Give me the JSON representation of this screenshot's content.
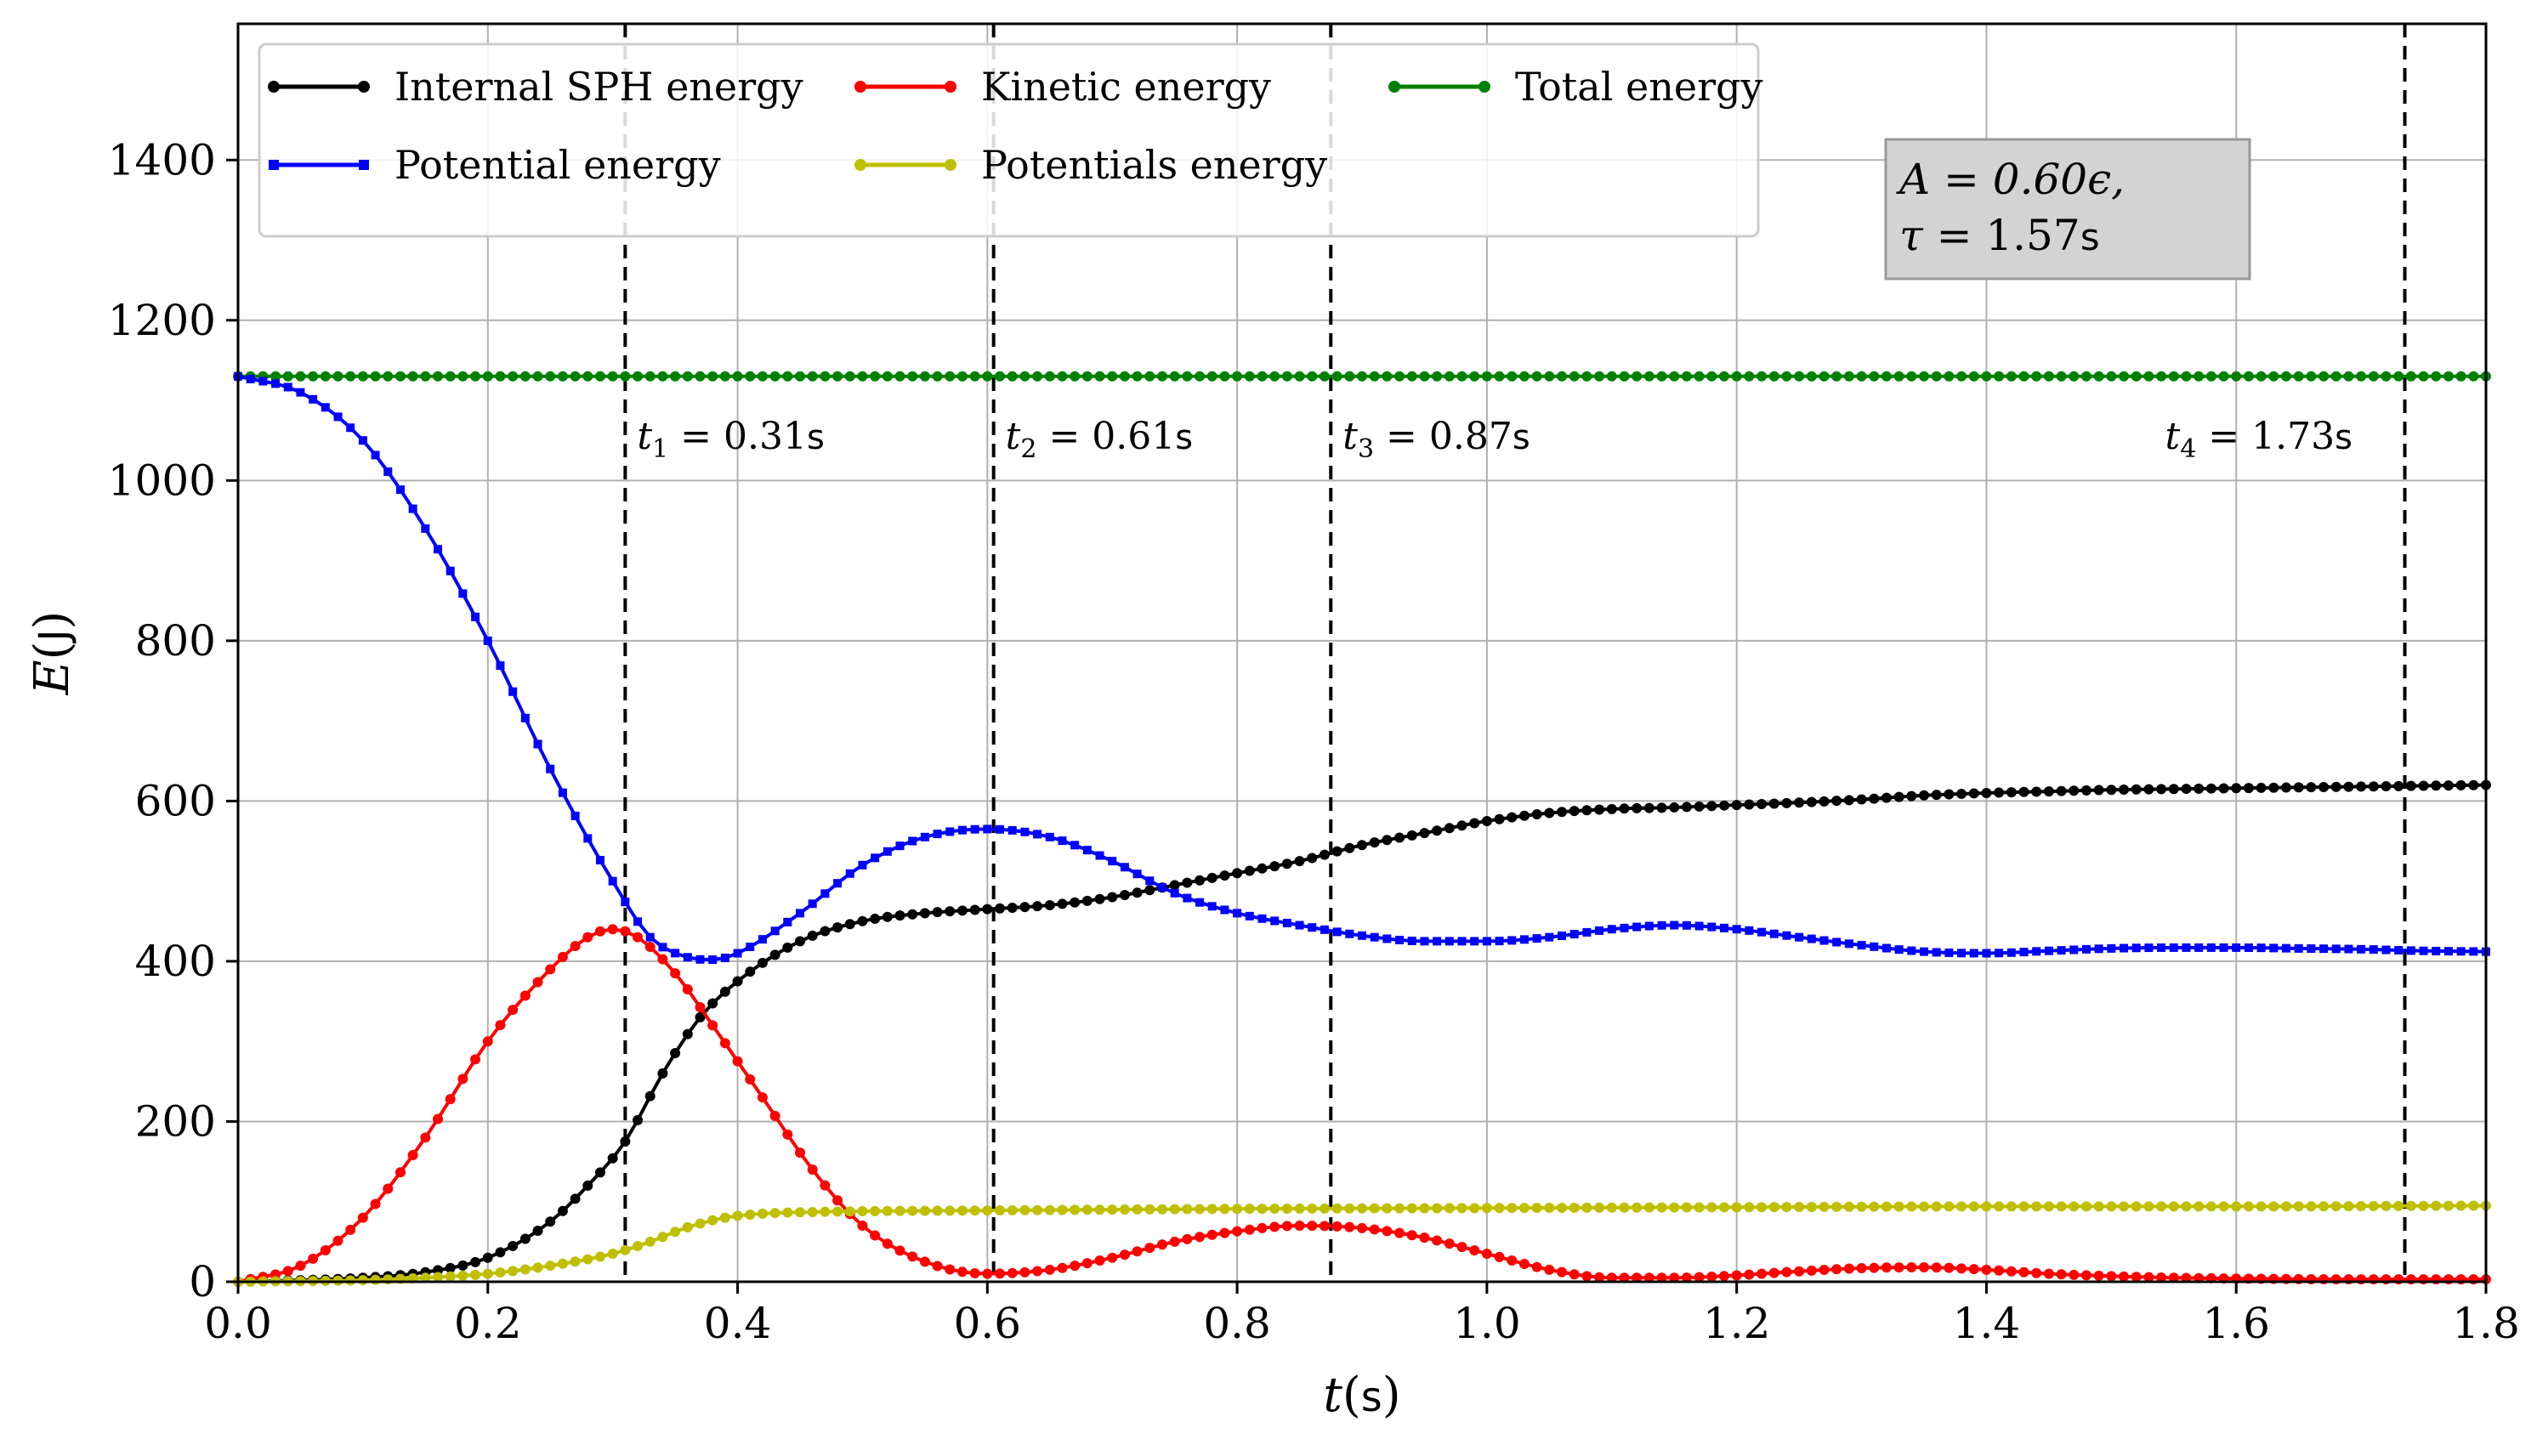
{
  "chart_data": {
    "type": "line",
    "xlabel_main": "t",
    "xlabel_unit": "s",
    "ylabel_main": "E",
    "ylabel_unit": "J",
    "xlim": [
      0.0,
      1.8
    ],
    "ylim": [
      0,
      1570
    ],
    "xticks": [
      0.0,
      0.2,
      0.4,
      0.6,
      0.8,
      1.0,
      1.2,
      1.4,
      1.6,
      1.8
    ],
    "xtick_labels": [
      "0.0",
      "0.2",
      "0.4",
      "0.6",
      "0.8",
      "1.0",
      "1.2",
      "1.4",
      "1.6",
      "1.8"
    ],
    "yticks": [
      0,
      200,
      400,
      600,
      800,
      1000,
      1200,
      1400
    ],
    "ytick_labels": [
      "0",
      "200",
      "400",
      "600",
      "800",
      "1000",
      "1200",
      "1400"
    ],
    "grid": true,
    "legend_position": "top-left",
    "series": [
      {
        "name": "Internal SPH energy",
        "color": "#000000",
        "marker": "circle",
        "x": [
          0.0,
          0.1,
          0.15,
          0.2,
          0.25,
          0.28,
          0.31,
          0.34,
          0.37,
          0.4,
          0.45,
          0.5,
          0.55,
          0.6,
          0.65,
          0.7,
          0.75,
          0.8,
          0.85,
          0.9,
          0.95,
          1.0,
          1.05,
          1.1,
          1.15,
          1.2,
          1.25,
          1.3,
          1.35,
          1.4,
          1.45,
          1.5,
          1.55,
          1.6,
          1.65,
          1.7,
          1.75,
          1.8
        ],
        "y": [
          0,
          5,
          12,
          30,
          75,
          120,
          175,
          260,
          330,
          375,
          425,
          450,
          460,
          465,
          470,
          480,
          495,
          510,
          525,
          545,
          560,
          575,
          585,
          590,
          592,
          595,
          598,
          602,
          607,
          610,
          612,
          614,
          615,
          616,
          617,
          618,
          619,
          620
        ]
      },
      {
        "name": "Kinetic energy",
        "color": "#ff0000",
        "marker": "circle",
        "x": [
          0.0,
          0.05,
          0.1,
          0.15,
          0.2,
          0.25,
          0.28,
          0.3,
          0.32,
          0.35,
          0.38,
          0.42,
          0.46,
          0.5,
          0.55,
          0.6,
          0.65,
          0.7,
          0.75,
          0.8,
          0.85,
          0.9,
          0.95,
          1.0,
          1.05,
          1.1,
          1.15,
          1.2,
          1.25,
          1.3,
          1.35,
          1.4,
          1.45,
          1.5,
          1.55,
          1.6,
          1.7,
          1.8
        ],
        "y": [
          0,
          20,
          80,
          180,
          300,
          390,
          430,
          440,
          430,
          385,
          320,
          230,
          140,
          70,
          25,
          10,
          15,
          30,
          50,
          63,
          70,
          67,
          55,
          35,
          15,
          5,
          5,
          8,
          13,
          17,
          18,
          15,
          10,
          7,
          5,
          4,
          3,
          3
        ]
      },
      {
        "name": "Total energy",
        "color": "#008000",
        "marker": "circle",
        "x": [
          0.0,
          1.8
        ],
        "y": [
          1130,
          1130
        ]
      },
      {
        "name": "Potential energy",
        "color": "#0000ff",
        "marker": "square",
        "x": [
          0.0,
          0.05,
          0.1,
          0.15,
          0.2,
          0.25,
          0.3,
          0.33,
          0.36,
          0.38,
          0.4,
          0.45,
          0.5,
          0.55,
          0.6,
          0.65,
          0.7,
          0.75,
          0.8,
          0.85,
          0.9,
          0.95,
          1.0,
          1.05,
          1.1,
          1.15,
          1.2,
          1.25,
          1.3,
          1.35,
          1.4,
          1.45,
          1.5,
          1.55,
          1.6,
          1.65,
          1.7,
          1.75,
          1.8
        ],
        "y": [
          1130,
          1110,
          1050,
          940,
          800,
          640,
          500,
          430,
          405,
          402,
          410,
          460,
          520,
          555,
          565,
          555,
          525,
          485,
          460,
          445,
          432,
          425,
          425,
          430,
          440,
          445,
          440,
          430,
          420,
          412,
          410,
          413,
          416,
          417,
          417,
          416,
          415,
          413,
          412
        ]
      },
      {
        "name": "Potentials energy",
        "color": "#bfbf00",
        "marker": "circle",
        "x": [
          0.0,
          0.1,
          0.15,
          0.2,
          0.25,
          0.3,
          0.33,
          0.36,
          0.39,
          0.42,
          0.46,
          0.5,
          0.6,
          0.8,
          1.0,
          1.2,
          1.4,
          1.6,
          1.8
        ],
        "y": [
          0,
          2,
          5,
          10,
          20,
          35,
          50,
          68,
          80,
          85,
          87,
          88,
          89,
          91,
          92,
          93,
          94,
          94,
          95
        ]
      }
    ],
    "vlines": [
      {
        "x": 0.31,
        "sub": "1",
        "value": "0.31",
        "unit": "s"
      },
      {
        "x": 0.605,
        "sub": "2",
        "value": "0.61",
        "unit": "s"
      },
      {
        "x": 0.875,
        "sub": "3",
        "value": "0.87",
        "unit": "s"
      },
      {
        "x": 1.735,
        "sub": "4",
        "value": "1.73",
        "unit": "s"
      }
    ],
    "annotation": {
      "line1": "A = 0.60ϵ,",
      "line2_var": "τ",
      "line2_value": " = 1.57",
      "line2_unit": "s"
    }
  }
}
